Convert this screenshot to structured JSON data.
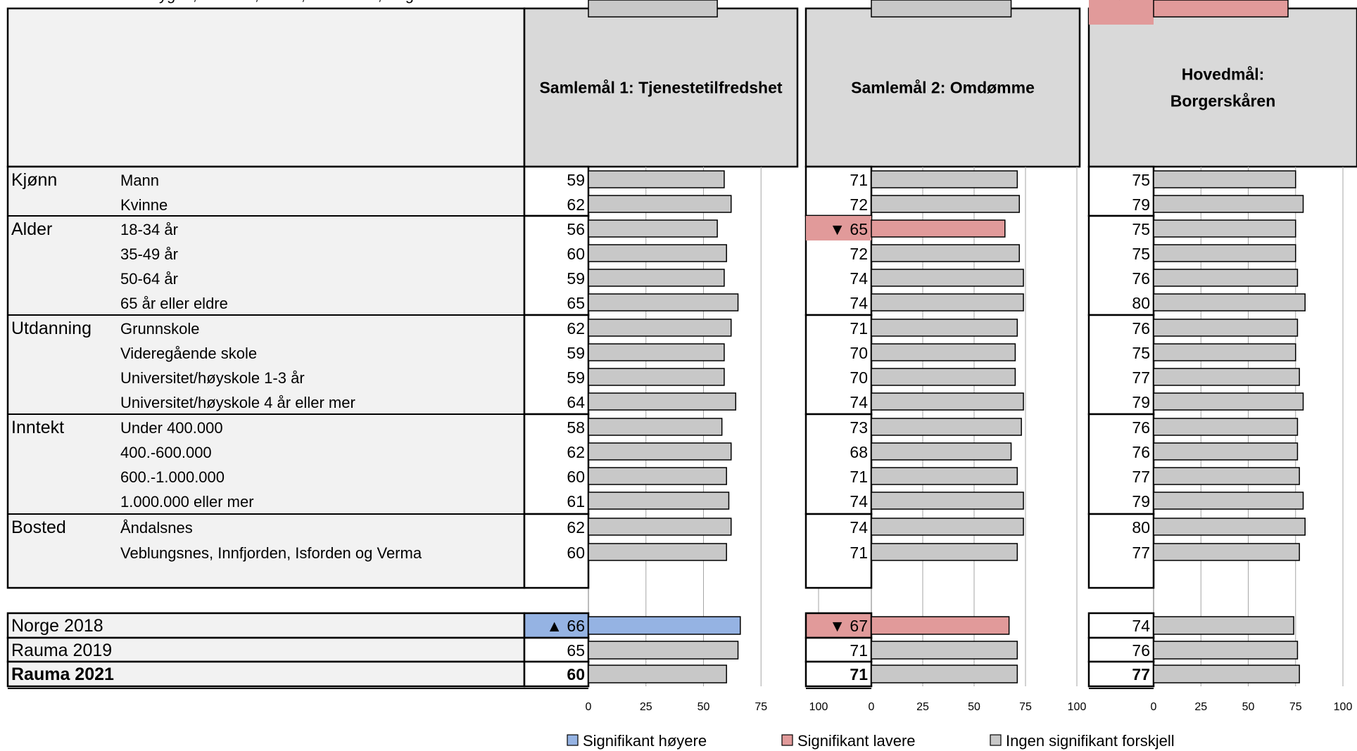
{
  "chart_data": {
    "type": "bar",
    "orientation": "horizontal",
    "panels": [
      {
        "title_lines": [
          "Samlemål 1: Tjenestetilfredshet"
        ]
      },
      {
        "title_lines": [
          "Samlemål 2: Omdømme"
        ]
      },
      {
        "title_lines": [
          "Hovedmål:",
          "Borgerskåren"
        ]
      }
    ],
    "xlim": [
      0,
      100
    ],
    "xticks": [
      "0",
      "25",
      "50",
      "75",
      "100"
    ],
    "groups": [
      {
        "name": "Kjønn",
        "rows": [
          {
            "label": "Mann",
            "values": [
              59,
              71,
              75
            ],
            "sig": [
              "none",
              "none",
              "none"
            ]
          },
          {
            "label": "Kvinne",
            "values": [
              62,
              72,
              79
            ],
            "sig": [
              "none",
              "none",
              "none"
            ]
          }
        ]
      },
      {
        "name": "Alder",
        "rows": [
          {
            "label": "18-34 år",
            "values": [
              56,
              65,
              75
            ],
            "sig": [
              "none",
              "lower",
              "none"
            ]
          },
          {
            "label": "35-49 år",
            "values": [
              60,
              72,
              75
            ],
            "sig": [
              "none",
              "none",
              "none"
            ]
          },
          {
            "label": "50-64 år",
            "values": [
              59,
              74,
              76
            ],
            "sig": [
              "none",
              "none",
              "none"
            ]
          },
          {
            "label": "65 år eller eldre",
            "values": [
              65,
              74,
              80
            ],
            "sig": [
              "none",
              "none",
              "none"
            ]
          }
        ]
      },
      {
        "name": "Utdanning",
        "rows": [
          {
            "label": "Grunnskole",
            "values": [
              62,
              71,
              76
            ],
            "sig": [
              "none",
              "none",
              "none"
            ]
          },
          {
            "label": "Videregående skole",
            "values": [
              59,
              70,
              75
            ],
            "sig": [
              "none",
              "none",
              "none"
            ]
          },
          {
            "label": "Universitet/høyskole 1-3 år",
            "values": [
              59,
              70,
              77
            ],
            "sig": [
              "none",
              "none",
              "none"
            ]
          },
          {
            "label": "Universitet/høyskole 4 år eller mer",
            "values": [
              64,
              74,
              79
            ],
            "sig": [
              "none",
              "none",
              "none"
            ]
          }
        ]
      },
      {
        "name": "Inntekt",
        "rows": [
          {
            "label": "Under 400.000",
            "values": [
              58,
              73,
              76
            ],
            "sig": [
              "none",
              "none",
              "none"
            ]
          },
          {
            "label": "400.-600.000",
            "values": [
              62,
              68,
              76
            ],
            "sig": [
              "none",
              "none",
              "none"
            ]
          },
          {
            "label": "600.-1.000.000",
            "values": [
              60,
              71,
              77
            ],
            "sig": [
              "none",
              "none",
              "none"
            ]
          },
          {
            "label": "1.000.000 eller mer",
            "values": [
              61,
              74,
              79
            ],
            "sig": [
              "none",
              "none",
              "none"
            ]
          }
        ]
      },
      {
        "name": "Bosted",
        "rows": [
          {
            "label": "Åndalsnes",
            "values": [
              62,
              74,
              80
            ],
            "sig": [
              "none",
              "none",
              "none"
            ]
          },
          {
            "label": "Veblungsnes, Innfjorden, Isforden og Verma",
            "values": [
              60,
              71,
              77
            ],
            "sig": [
              "none",
              "none",
              "none"
            ]
          },
          {
            "label": "Eidsbygda, Åfarnes, Mittet, Måndalen, Vågstranda",
            "values": [
              56,
              68,
              71
            ],
            "sig": [
              "none",
              "none",
              "lower"
            ]
          }
        ]
      }
    ],
    "totals": [
      {
        "label": "Norge 2018",
        "values": [
          66,
          67,
          74
        ],
        "sig": [
          "higher",
          "lower",
          "none"
        ],
        "bold": false
      },
      {
        "label": "Rauma 2019",
        "values": [
          65,
          71,
          76
        ],
        "sig": [
          "none",
          "none",
          "none"
        ],
        "bold": false
      },
      {
        "label": "Rauma 2021",
        "values": [
          60,
          71,
          77
        ],
        "sig": [
          "none",
          "none",
          "none"
        ],
        "bold": true
      }
    ],
    "legend": [
      {
        "key": "higher",
        "label": "Signifikant høyere",
        "color": "#95b3e3"
      },
      {
        "key": "lower",
        "label": "Signifikant lavere",
        "color": "#e19a9a"
      },
      {
        "key": "none",
        "label": "Ingen signifikant forskjell",
        "color": "#c8c8c8"
      }
    ],
    "colors": {
      "header_fill": "#d9d9d9",
      "label_fill": "#f2f2f2",
      "grid": "#a6a6a6"
    },
    "markers": {
      "higher": "▲",
      "lower": "▼"
    }
  }
}
